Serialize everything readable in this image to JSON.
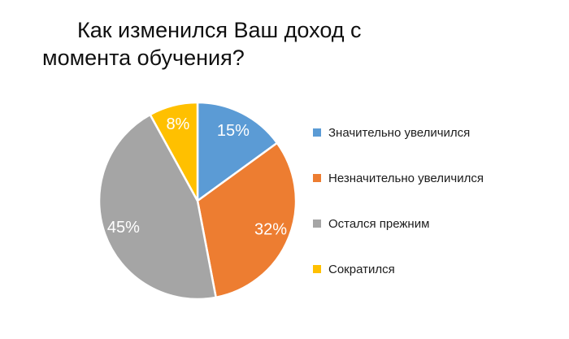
{
  "title": {
    "line1": "Как изменился Ваш доход с",
    "line2": "момента обучения?",
    "full": "Как изменился Ваш доход с момента обучения?"
  },
  "chart_data": {
    "type": "pie",
    "title": "Как изменился Ваш доход с момента обучения?",
    "direction": "clockwise",
    "start_angle_deg": 0,
    "legend_position": "right",
    "data_label_color": "#ffffff",
    "separator_color": "#ffffff",
    "background_color": "#ffffff",
    "slices": [
      {
        "label": "Значительно увеличился",
        "value": 15,
        "data_label": "15%",
        "color": "#5B9BD5"
      },
      {
        "label": "Незначительно увеличился",
        "value": 32,
        "data_label": "32%",
        "color": "#ED7D31"
      },
      {
        "label": "Остался прежним",
        "value": 45,
        "data_label": "45%",
        "color": "#A5A5A5"
      },
      {
        "label": "Сократился",
        "value": 8,
        "data_label": "8%",
        "color": "#FFC000"
      }
    ]
  }
}
